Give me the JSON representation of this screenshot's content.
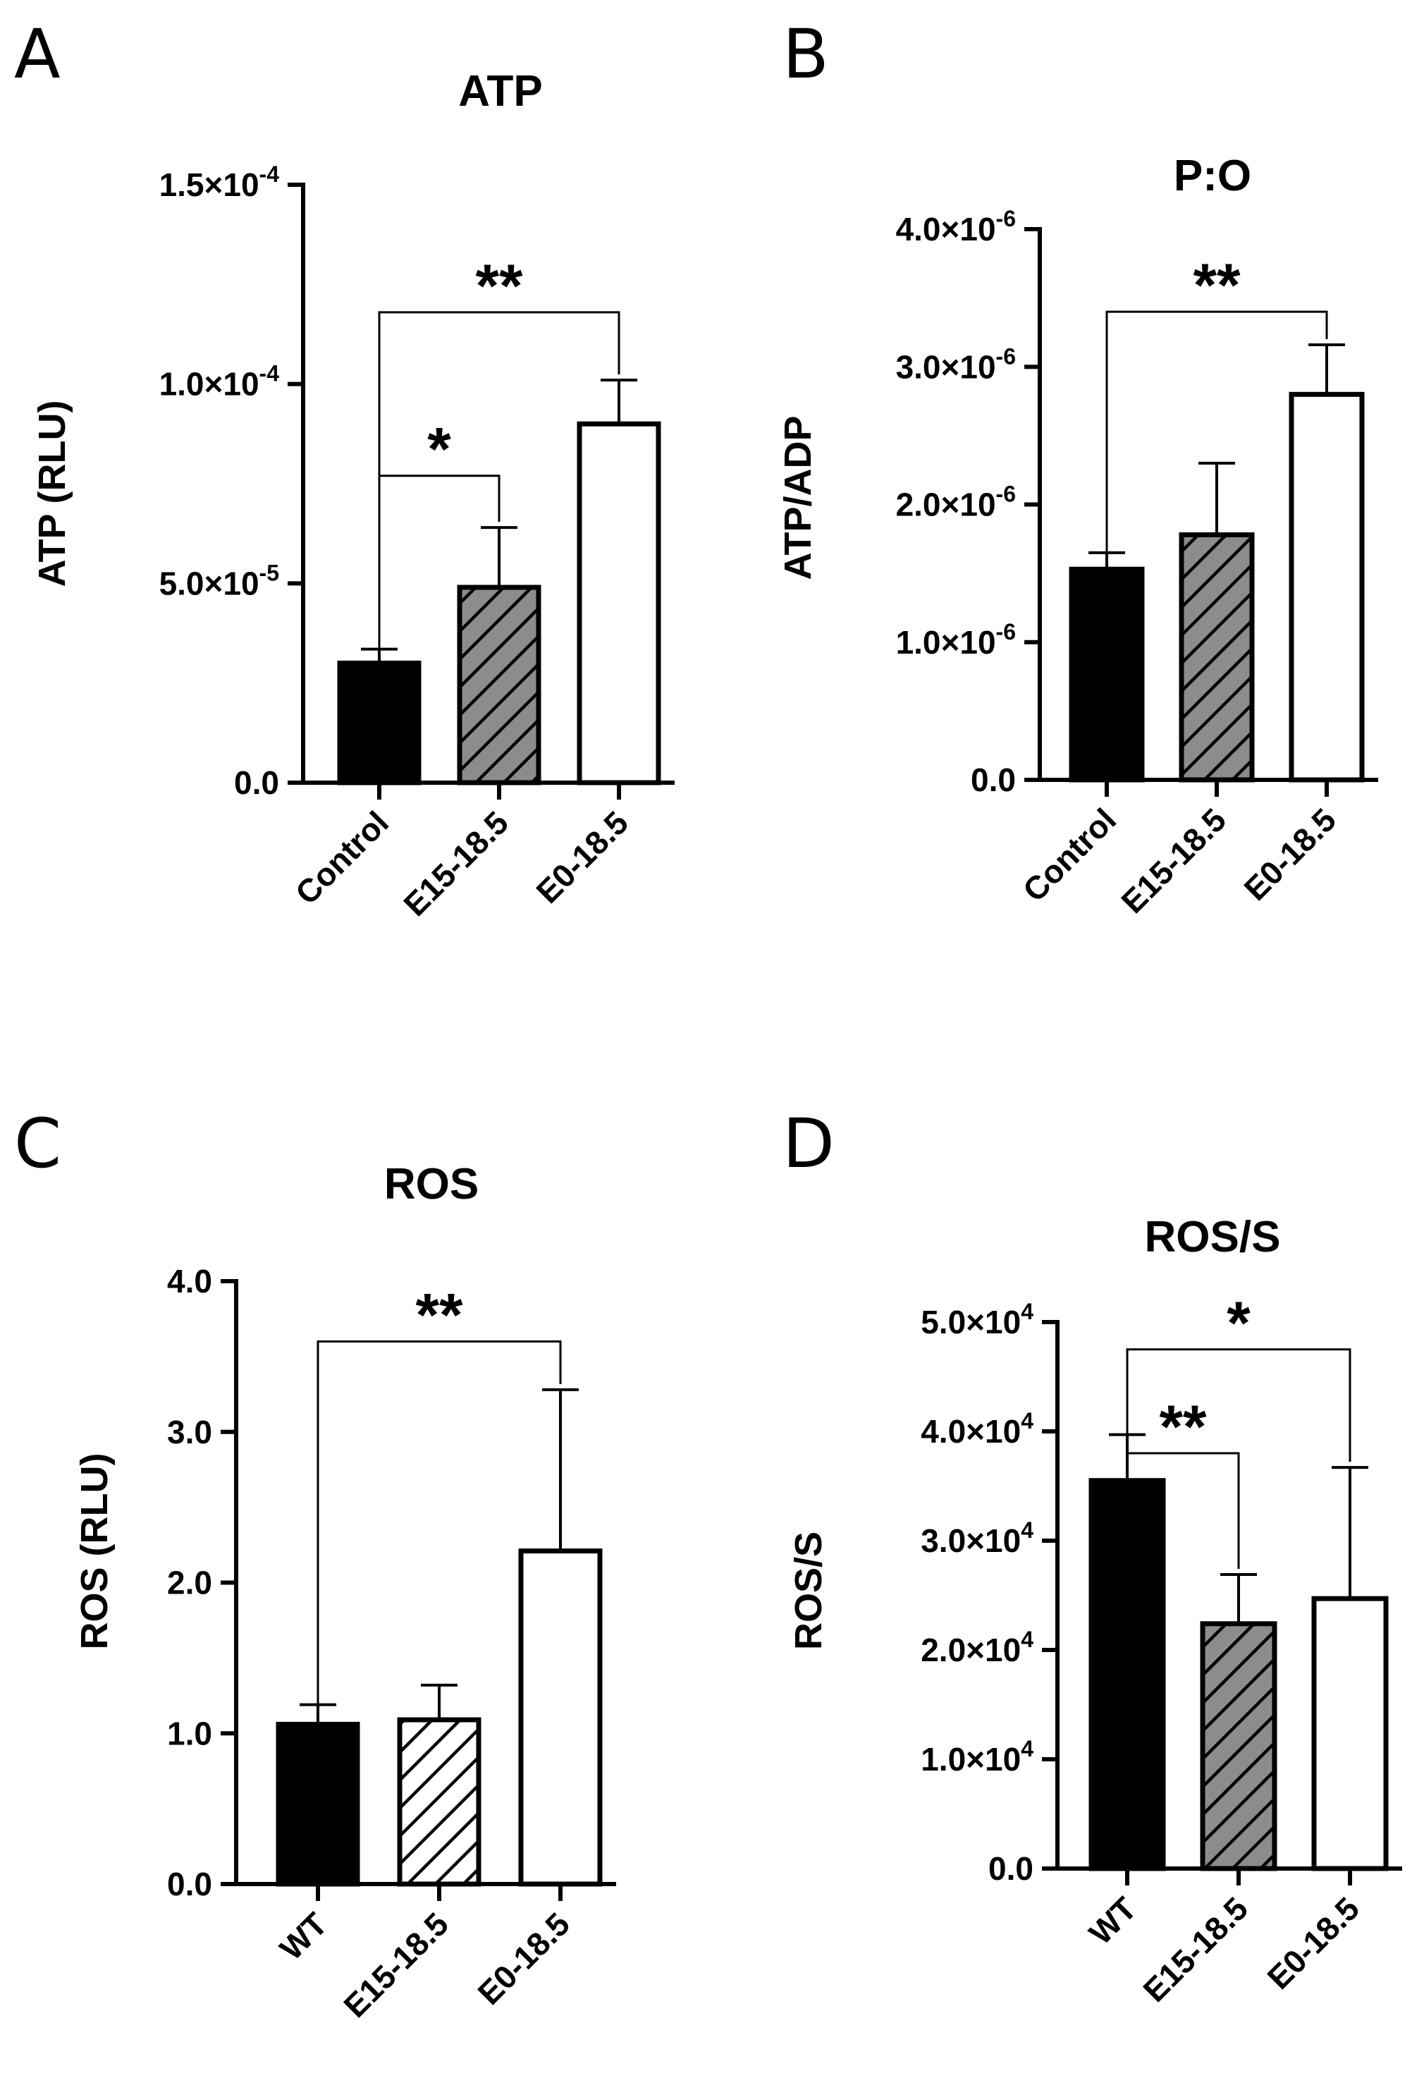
{
  "chart_data": [
    {
      "panel": "A",
      "type": "bar",
      "title": "ATP",
      "ylabel": "ATP (RLU)",
      "xlabel": "",
      "categories": [
        "Control",
        "E15-18.5",
        "E0-18.5"
      ],
      "values": [
        3e-05,
        4.9e-05,
        9e-05
      ],
      "errors": [
        3.5e-06,
        1.5e-05,
        1.1e-05
      ],
      "fills": [
        "solid",
        "hatched-gray",
        "white"
      ],
      "ylim": [
        0,
        0.00015
      ],
      "yticks": [
        {
          "value": 0,
          "label": "0.0"
        },
        {
          "value": 5e-05,
          "mantissa": "5.0",
          "exponent": "-5"
        },
        {
          "value": 0.0001,
          "mantissa": "1.0",
          "exponent": "-4"
        },
        {
          "value": 0.00015,
          "mantissa": "1.5",
          "exponent": "-4"
        }
      ],
      "significance": [
        {
          "from": 0,
          "to": 2,
          "y": 0.000118,
          "label": "**"
        },
        {
          "from": 0,
          "to": 1,
          "y": 7.7e-05,
          "label": "*"
        }
      ]
    },
    {
      "panel": "B",
      "type": "bar",
      "title": "P:O",
      "ylabel": "ATP/ADP",
      "xlabel": "",
      "categories": [
        "Control",
        "E15-18.5",
        "E0-18.5"
      ],
      "values": [
        1.53e-06,
        1.78e-06,
        2.8e-06
      ],
      "errors": [
        1.2e-07,
        5.2e-07,
        3.6e-07
      ],
      "fills": [
        "solid",
        "hatched-gray",
        "white"
      ],
      "ylim": [
        0,
        4e-06
      ],
      "yticks": [
        {
          "value": 0,
          "label": "0.0"
        },
        {
          "value": 1e-06,
          "mantissa": "1.0",
          "exponent": "-6"
        },
        {
          "value": 2e-06,
          "mantissa": "2.0",
          "exponent": "-6"
        },
        {
          "value": 3e-06,
          "mantissa": "3.0",
          "exponent": "-6"
        },
        {
          "value": 4e-06,
          "mantissa": "4.0",
          "exponent": "-6"
        }
      ],
      "significance": [
        {
          "from": 0,
          "to": 2,
          "y": 3.4e-06,
          "label": "**"
        }
      ]
    },
    {
      "panel": "C",
      "type": "bar",
      "title": "ROS",
      "ylabel": "ROS (RLU)",
      "xlabel": "",
      "categories": [
        "WT",
        "E15-18.5",
        "E0-18.5"
      ],
      "values": [
        1.06,
        1.09,
        2.21
      ],
      "errors": [
        0.13,
        0.23,
        1.07
      ],
      "fills": [
        "solid",
        "hatched-white",
        "white"
      ],
      "ylim": [
        0,
        4.0
      ],
      "yticks": [
        {
          "value": 0,
          "label": "0.0"
        },
        {
          "value": 1,
          "label": "1.0"
        },
        {
          "value": 2,
          "label": "2.0"
        },
        {
          "value": 3,
          "label": "3.0"
        },
        {
          "value": 4,
          "label": "4.0"
        }
      ],
      "significance": [
        {
          "from": 0,
          "to": 2,
          "y": 3.6,
          "label": "**"
        }
      ]
    },
    {
      "panel": "D",
      "type": "bar",
      "title": "ROS/S",
      "ylabel": "ROS/S",
      "xlabel": "",
      "categories": [
        "WT",
        "E15-18.5",
        "E0-18.5"
      ],
      "values": [
        35500,
        22400,
        24700
      ],
      "errors": [
        4200,
        4500,
        12000
      ],
      "fills": [
        "solid",
        "hatched-gray",
        "white"
      ],
      "ylim": [
        0,
        50000
      ],
      "yticks": [
        {
          "value": 0,
          "label": "0.0"
        },
        {
          "value": 10000,
          "mantissa": "1.0",
          "exponent": "4"
        },
        {
          "value": 20000,
          "mantissa": "2.0",
          "exponent": "4"
        },
        {
          "value": 30000,
          "mantissa": "3.0",
          "exponent": "4"
        },
        {
          "value": 40000,
          "mantissa": "4.0",
          "exponent": "4"
        },
        {
          "value": 50000,
          "mantissa": "5.0",
          "exponent": "4"
        }
      ],
      "significance": [
        {
          "from": 0,
          "to": 2,
          "y": 47500,
          "label": "*"
        },
        {
          "from": 0,
          "to": 1,
          "y": 38000,
          "label": "**"
        }
      ]
    }
  ],
  "colors": {
    "solid": "#000000",
    "hatch_gray": "#8c8c8c",
    "axis": "#000000",
    "background": "#ffffff"
  }
}
